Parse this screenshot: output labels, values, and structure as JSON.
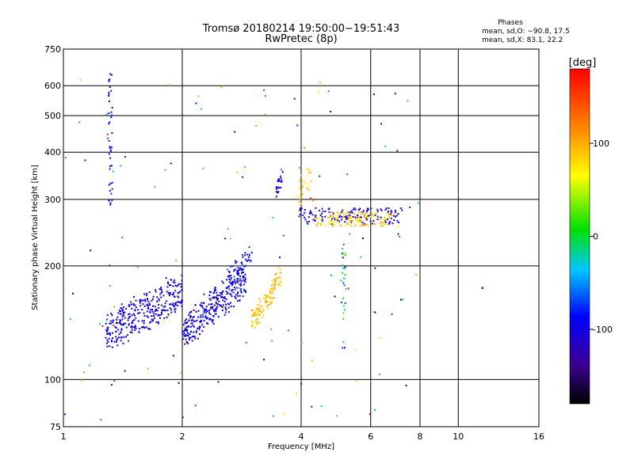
{
  "chart_data": {
    "type": "scatter",
    "title": "Tromsø 20180214 19:50:00−19:51:43",
    "subtitle": "RwPretec (8p)",
    "xlabel": "Frequency [MHz]",
    "ylabel": "Stationary phase Virtual Height [km]",
    "x_scale": "log",
    "y_scale": "log",
    "xlim": [
      1,
      16
    ],
    "ylim": [
      75,
      750
    ],
    "x_ticks": [
      1,
      2,
      4,
      6,
      8,
      10,
      16
    ],
    "y_ticks": [
      75,
      100,
      200,
      300,
      400,
      500,
      600,
      750
    ],
    "grid": true,
    "phases": {
      "title": "Phases",
      "line1": "mean, sd,O: −90.8, 17.5",
      "line2": "mean, sd,X:  83.1, 22.2"
    },
    "colorbar": {
      "label": "[deg]",
      "range": [
        -180,
        180
      ],
      "ticks": [
        100,
        0,
        -100
      ],
      "colormap": "rainbow"
    },
    "clusters": [
      {
        "name": "e-layer-blue",
        "n": 320,
        "x": [
          1.28,
          2.0
        ],
        "y": [
          120,
          190
        ],
        "trend": 0.55,
        "phase": [
          -115,
          -85
        ]
      },
      {
        "name": "f-rise-blue",
        "n": 300,
        "x": [
          2.0,
          2.9
        ],
        "y": [
          122,
          200
        ],
        "trend": 0.65,
        "phase": [
          -115,
          -80
        ]
      },
      {
        "name": "f-rise-top",
        "n": 40,
        "x": [
          2.6,
          3.0
        ],
        "y": [
          180,
          225
        ],
        "trend": 0.6,
        "phase": [
          -110,
          -60
        ]
      },
      {
        "name": "x-trace-yellow",
        "n": 110,
        "x": [
          3.0,
          3.55
        ],
        "y": [
          132,
          200
        ],
        "trend": 0.7,
        "phase": [
          70,
          110
        ]
      },
      {
        "name": "f2-blue",
        "n": 140,
        "x": [
          3.95,
          7.2
        ],
        "y": [
          258,
          285
        ],
        "trend": 0,
        "phase": [
          -130,
          -85
        ]
      },
      {
        "name": "f2-yellow",
        "n": 120,
        "x": [
          4.35,
          6.8
        ],
        "y": [
          255,
          278
        ],
        "trend": 0,
        "phase": [
          60,
          110
        ]
      },
      {
        "name": "cusp-a",
        "n": 22,
        "x": [
          3.45,
          3.6
        ],
        "y": [
          305,
          355
        ],
        "trend": 0.5,
        "phase": [
          -110,
          -85
        ]
      },
      {
        "name": "cusp-b",
        "n": 22,
        "x": [
          3.95,
          4.25
        ],
        "y": [
          290,
          380
        ],
        "trend": 0.4,
        "phase": [
          60,
          110
        ]
      },
      {
        "name": "streak-1.3",
        "n": 40,
        "x": [
          1.3,
          1.33
        ],
        "y": [
          290,
          650
        ],
        "trend": 0,
        "phase": [
          -115,
          -80
        ]
      },
      {
        "name": "streak-5.1",
        "n": 30,
        "x": [
          5.05,
          5.2
        ],
        "y": [
          120,
          230
        ],
        "trend": 0,
        "phase": [
          -110,
          40
        ]
      },
      {
        "name": "scatter",
        "n": 130,
        "x": [
          1.0,
          8.0
        ],
        "y": [
          78,
          640
        ],
        "trend": 0,
        "phase": [
          -180,
          180
        ]
      }
    ]
  }
}
